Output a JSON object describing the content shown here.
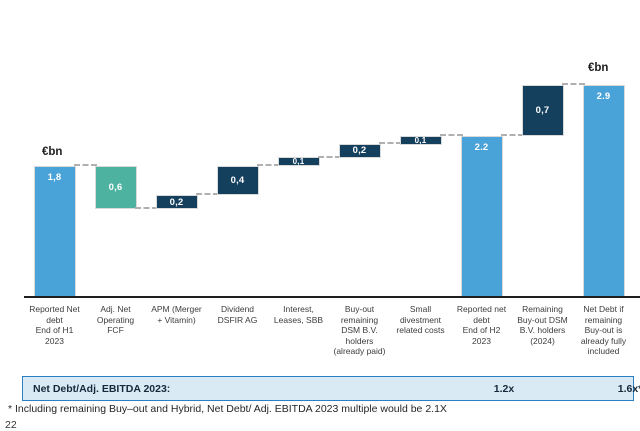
{
  "unit_labels": {
    "left": "€bn",
    "right": "€bn"
  },
  "chart_data": {
    "type": "bar",
    "subtype": "waterfall",
    "unit": "€bn",
    "ylim": [
      0,
      3.2
    ],
    "grid": false,
    "colors": {
      "total": "#4aa3d8",
      "decrease": "#4db3a0",
      "increase": "#14405e",
      "axis": "#1f1f1f",
      "connector": "#b0b0b0"
    },
    "bars": [
      {
        "label": "Reported Net debt End of H1 2023",
        "label_lines": [
          "Reported Net",
          "debt",
          "End of H1",
          "2023"
        ],
        "value": 1.8,
        "display": "1,8",
        "role": "total"
      },
      {
        "label": "Adj. Net Operating FCF",
        "label_lines": [
          "Adj. Net",
          "Operating",
          "FCF"
        ],
        "value": -0.6,
        "display": "0,6",
        "role": "decrease"
      },
      {
        "label": "APM (Merger + Vitamin)",
        "label_lines": [
          "APM (Merger",
          "+ Vitamin)"
        ],
        "value": 0.2,
        "display": "0,2",
        "role": "increase"
      },
      {
        "label": "Dividend DSFIR AG",
        "label_lines": [
          "Dividend",
          "DSFIR AG"
        ],
        "value": 0.4,
        "display": "0,4",
        "role": "increase"
      },
      {
        "label": "Interest, Leases, SBB",
        "label_lines": [
          "Interest,",
          "Leases, SBB"
        ],
        "value": 0.1,
        "display": "0,1",
        "role": "increase"
      },
      {
        "label": "Buy-out remaining DSM B.V. holders (already paid)",
        "label_lines": [
          "Buy-out",
          "remaining",
          "DSM B.V.",
          "holders",
          "(already paid)"
        ],
        "value": 0.2,
        "display": "0,2",
        "role": "increase"
      },
      {
        "label": "Small divestment related costs",
        "label_lines": [
          "Small",
          "divestment",
          "related costs"
        ],
        "value": 0.1,
        "display": "0,1",
        "role": "increase"
      },
      {
        "label": "Reported net debt End of H2 2023",
        "label_lines": [
          "Reported net",
          "debt",
          "End of H2",
          "2023"
        ],
        "value": 2.2,
        "display": "2.2",
        "role": "total"
      },
      {
        "label": "Remaining Buy-out DSM B.V. holders (2024)",
        "label_lines": [
          "Remaining",
          "Buy-out DSM",
          "B.V. holders",
          "(2024)"
        ],
        "value": 0.7,
        "display": "0,7",
        "role": "increase"
      },
      {
        "label": "Net Debt if remaining Buy-out is already fully included",
        "label_lines": [
          "Net Debt if",
          "remaining",
          "Buy-out is",
          "already fully",
          "included"
        ],
        "value": 2.9,
        "display": "2.9",
        "role": "total"
      }
    ]
  },
  "ratio_bar": {
    "label": "Net Debt/Adj. EBITDA 2023:",
    "value_h2": "1.2x",
    "value_full": "1.6x*"
  },
  "footnote": "* Including remaining Buy–out and Hybrid, Net Debt/ Adj. EBITDA 2023 multiple would be 2.1X",
  "page_number": "22"
}
